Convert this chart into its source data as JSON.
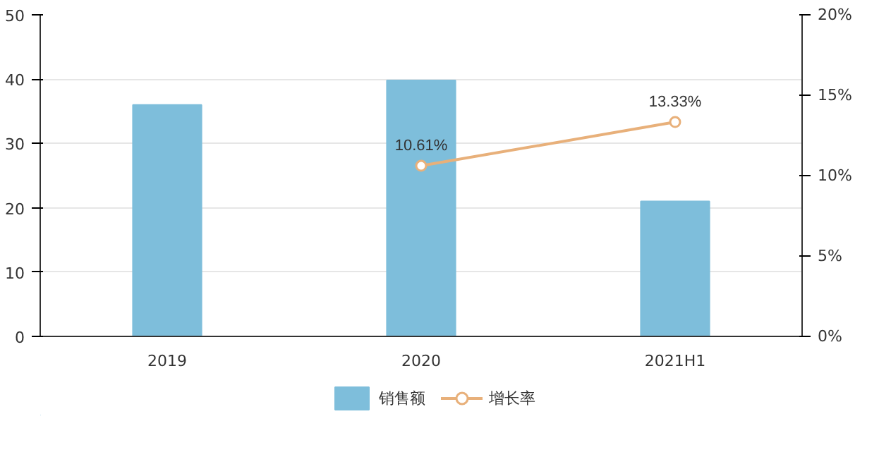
{
  "chart_data": {
    "type": "bar",
    "categories": [
      "2019",
      "2020",
      "2021H1"
    ],
    "series": [
      {
        "name": "销售额",
        "color": "#7ebedb",
        "values": [
          36,
          39.8,
          21
        ]
      },
      {
        "name": "增长率",
        "type": "line",
        "axis": "y2",
        "color": "#e8b07a",
        "values": [
          null,
          10.61,
          13.33
        ],
        "value_labels": [
          null,
          "10.61%",
          "13.33%"
        ],
        "marker": "circle"
      }
    ],
    "ylim": [
      0,
      50
    ],
    "yticks": [
      0,
      10,
      20,
      30,
      40,
      50
    ],
    "y2lim": [
      0,
      20
    ],
    "y2ticks": [
      {
        "value": 0,
        "label": "0%"
      },
      {
        "value": 5,
        "label": "5%"
      },
      {
        "value": 10,
        "label": "10%"
      },
      {
        "value": 15,
        "label": "15%"
      },
      {
        "value": 20,
        "label": "20%"
      }
    ],
    "grid": "y",
    "legend": "bottom"
  }
}
